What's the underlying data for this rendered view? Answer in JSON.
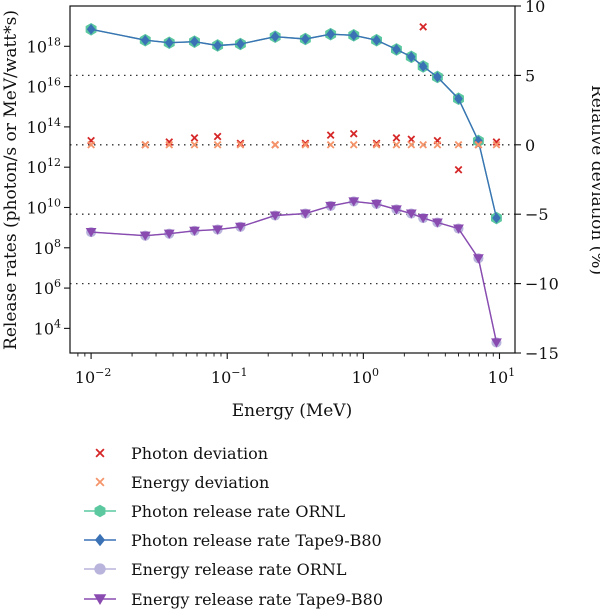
{
  "chart_data": {
    "type": "line",
    "xlabel": "Energy (MeV)",
    "ylabel_left": "Release rates (photon/s or MeV/watt*s)",
    "ylabel_right": "Relative deviation (%)",
    "x_scale": "log",
    "y_left_scale": "log",
    "xlim": [
      0.007,
      13
    ],
    "ylim_left": [
      600,
      1e+20
    ],
    "ylim_right": [
      -15,
      10
    ],
    "x_ticks": [
      {
        "value": 0.01,
        "base": "10",
        "exp": "−2"
      },
      {
        "value": 0.1,
        "base": "10",
        "exp": "−1"
      },
      {
        "value": 1,
        "base": "10",
        "exp": "0"
      },
      {
        "value": 10,
        "base": "10",
        "exp": "1"
      }
    ],
    "y_left_ticks": [
      {
        "value": 10000.0,
        "base": "10",
        "exp": "4"
      },
      {
        "value": 1000000.0,
        "base": "10",
        "exp": "6"
      },
      {
        "value": 100000000.0,
        "base": "10",
        "exp": "8"
      },
      {
        "value": 10000000000.0,
        "base": "10",
        "exp": "10"
      },
      {
        "value": 1000000000000.0,
        "base": "10",
        "exp": "12"
      },
      {
        "value": 100000000000000.0,
        "base": "10",
        "exp": "14"
      },
      {
        "value": 1e+16,
        "base": "10",
        "exp": "16"
      },
      {
        "value": 1e+18,
        "base": "10",
        "exp": "18"
      }
    ],
    "y_right_ticks": [
      {
        "value": 10,
        "label": "10"
      },
      {
        "value": 5,
        "label": "5"
      },
      {
        "value": 0,
        "label": "0"
      },
      {
        "value": -5,
        "label": "−5"
      },
      {
        "value": -10,
        "label": "−10"
      },
      {
        "value": -15,
        "label": "−15"
      }
    ],
    "right_gridlines": [
      5,
      0,
      -5,
      -10
    ],
    "x": [
      0.01,
      0.025,
      0.0375,
      0.0575,
      0.085,
      0.125,
      0.225,
      0.375,
      0.575,
      0.85,
      1.25,
      1.75,
      2.25,
      2.75,
      3.5,
      5,
      7,
      9.5
    ],
    "series": [
      {
        "name": "Photon deviation",
        "axis": "right",
        "kind": "marker",
        "marker": "x",
        "color": "#d62728",
        "values": [
          0.3,
          0.0,
          0.2,
          0.5,
          0.6,
          0.1,
          0.0,
          0.1,
          0.7,
          0.8,
          0.1,
          0.5,
          0.4,
          8.5,
          0.3,
          -1.8,
          0.0,
          0.2
        ]
      },
      {
        "name": "Energy deviation",
        "axis": "right",
        "kind": "marker",
        "marker": "x",
        "color": "#f5956b",
        "values": [
          0.0,
          0.0,
          0.0,
          0.0,
          0.0,
          0.0,
          0.0,
          0.0,
          0.0,
          0.0,
          0.0,
          0.0,
          0.0,
          0.0,
          0.0,
          0.0,
          0.0,
          0.0
        ]
      },
      {
        "name": "Photon release rate ORNL",
        "axis": "left",
        "kind": "line",
        "marker": "hexagon",
        "color": "#5cc8a0",
        "values": [
          7e+18,
          2e+18,
          1.5e+18,
          1.7e+18,
          1.1e+18,
          1.3e+18,
          3e+18,
          2.3e+18,
          4e+18,
          3.5e+18,
          2e+18,
          7e+17,
          3e+17,
          1e+17,
          3e+16,
          2500000000000000.0,
          20000000000000.0,
          3000000000.0
        ]
      },
      {
        "name": "Photon release rate Tape9-B80",
        "axis": "left",
        "kind": "line",
        "marker": "diamond",
        "color": "#3a72b5",
        "values": [
          7e+18,
          2e+18,
          1.5e+18,
          1.7e+18,
          1.1e+18,
          1.3e+18,
          3e+18,
          2.3e+18,
          4e+18,
          3.5e+18,
          2e+18,
          7e+17,
          3e+17,
          1e+17,
          3e+16,
          2500000000000000.0,
          20000000000000.0,
          3000000000.0
        ]
      },
      {
        "name": "Energy release rate ORNL",
        "axis": "left",
        "kind": "line",
        "marker": "circle",
        "color": "#b8b4dc",
        "values": [
          600000000.0,
          400000000.0,
          500000000.0,
          700000000.0,
          800000000.0,
          1100000000.0,
          4000000000.0,
          5000000000.0,
          12000000000.0,
          20000000000.0,
          15000000000.0,
          8000000000.0,
          5000000000.0,
          3000000000.0,
          1800000000.0,
          900000000.0,
          30000000.0,
          2000.0
        ]
      },
      {
        "name": "Energy release rate Tape9-B80",
        "axis": "left",
        "kind": "line",
        "marker": "triangle-down",
        "color": "#8a4bb0",
        "values": [
          600000000.0,
          400000000.0,
          500000000.0,
          700000000.0,
          800000000.0,
          1100000000.0,
          4000000000.0,
          5000000000.0,
          12000000000.0,
          20000000000.0,
          15000000000.0,
          8000000000.0,
          5000000000.0,
          3000000000.0,
          1800000000.0,
          900000000.0,
          30000000.0,
          2000.0
        ]
      }
    ],
    "legend_placement": "below-chart"
  }
}
